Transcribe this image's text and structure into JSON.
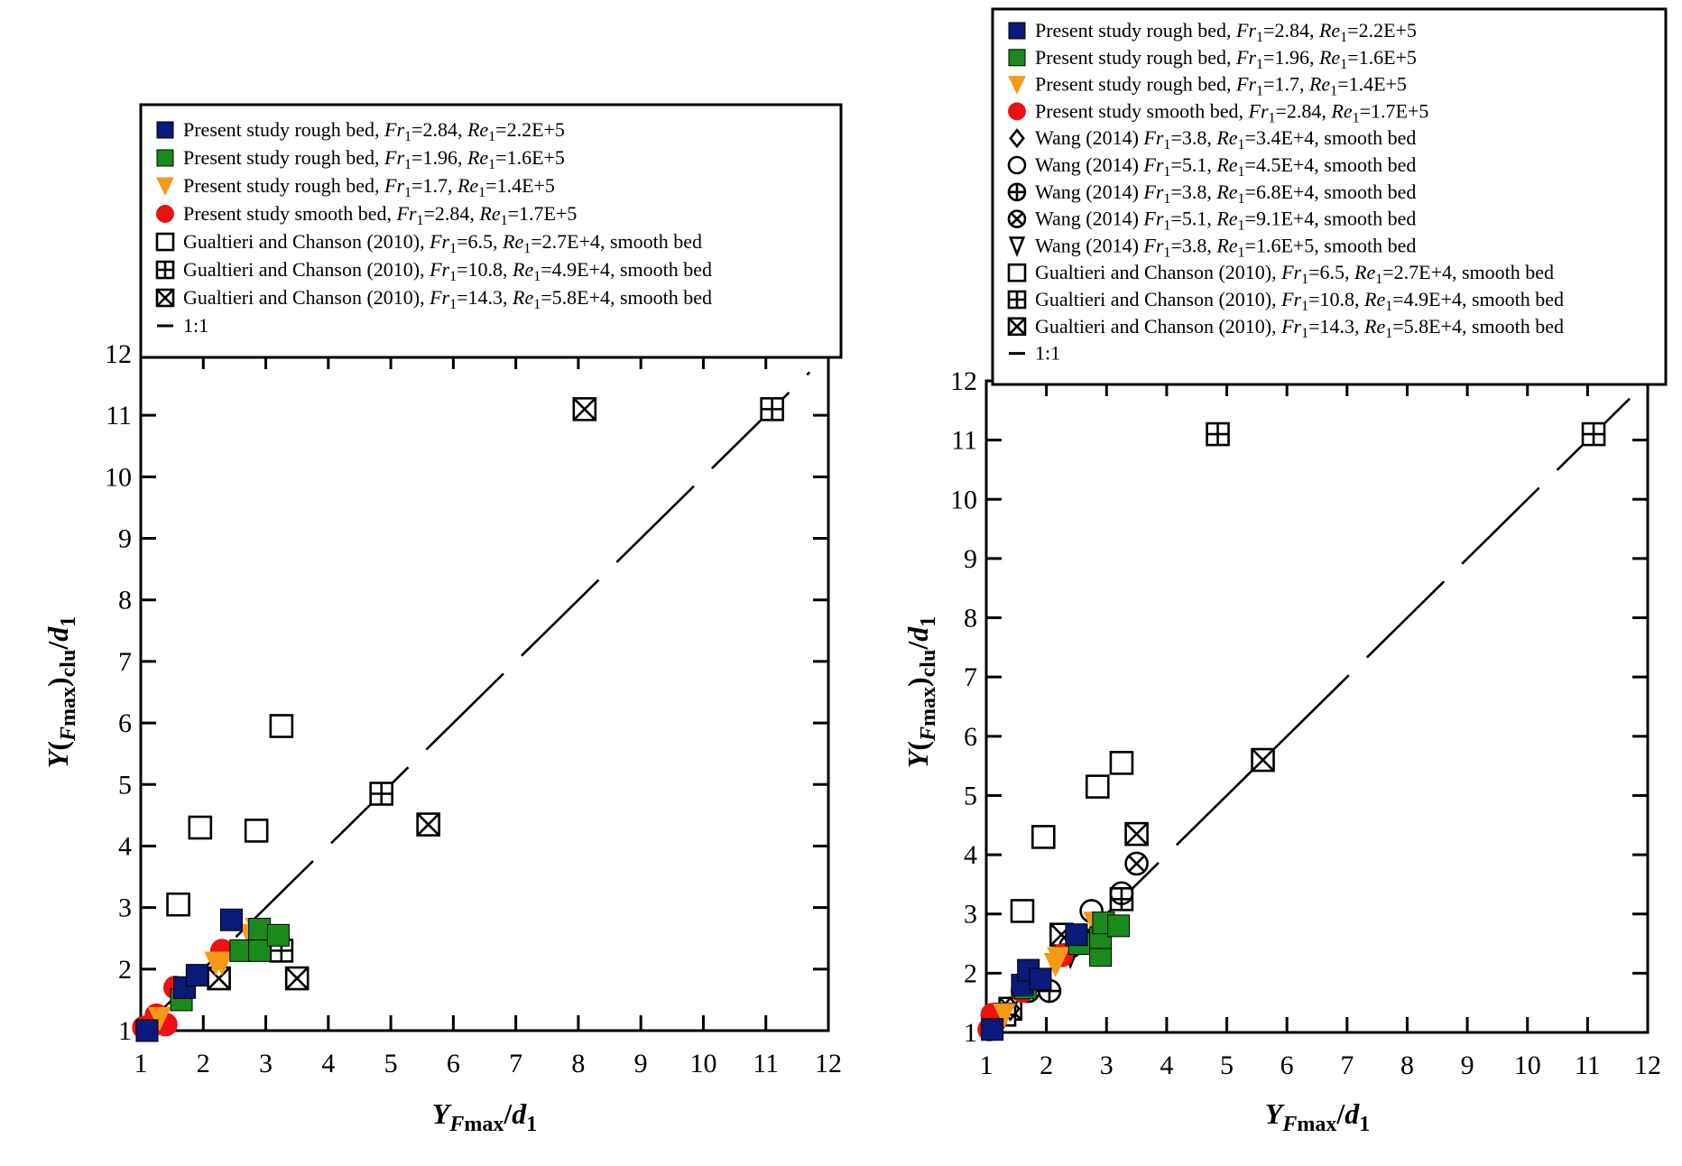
{
  "colors": {
    "rough_284": "#0a1a7a",
    "rough_196": "#1a8a1a",
    "rough_17": "#f59a16",
    "smooth_284": "#ee1111",
    "black": "#000000"
  },
  "chart_data": [
    {
      "type": "scatter",
      "title": "",
      "xlabel": "YFmax/d1",
      "ylabel": "Y(Fmax)clu/d1",
      "xlabel_parts": {
        "main": "Y",
        "sub_italic": "F",
        "sub": "max",
        "slash": "/",
        "d": "d",
        "d_sub": "1"
      },
      "ylabel_parts": {
        "main": "Y(",
        "sub_italic": "F",
        "sub": "max",
        "close": ")",
        "sub2": "clu",
        "slash": "/",
        "d": "d",
        "d_sub": "1"
      },
      "xlim": [
        1,
        12
      ],
      "ylim": [
        1,
        12
      ],
      "xticks": [
        "1",
        "2",
        "3",
        "4",
        "5",
        "6",
        "7",
        "8",
        "9",
        "10",
        "11",
        "12"
      ],
      "yticks": [
        "1",
        "2",
        "3",
        "4",
        "5",
        "6",
        "7",
        "8",
        "9",
        "10",
        "11",
        "12"
      ],
      "grid": false,
      "legend_position": "top",
      "series": [
        {
          "name": "Present study rough bed, Fr1=2.84, Re1=2.2E+5",
          "label": [
            "Present study rough bed, ",
            "Fr",
            "1",
            "=2.84, ",
            "Re",
            "1",
            "=2.2E+5"
          ],
          "marker": "square-filled",
          "color": "#0a1a7a",
          "points": [
            [
              1.1,
              1.0
            ],
            [
              1.7,
              1.7
            ],
            [
              1.9,
              1.9
            ],
            [
              2.45,
              2.8
            ]
          ]
        },
        {
          "name": "Present study rough bed, Fr1=1.96, Re1=1.6E+5",
          "label": [
            "Present study rough bed, ",
            "Fr",
            "1",
            "=1.96, ",
            "Re",
            "1",
            "=1.6E+5"
          ],
          "marker": "square-filled",
          "color": "#1a8a1a",
          "points": [
            [
              1.65,
              1.5
            ],
            [
              2.6,
              2.3
            ],
            [
              2.9,
              2.3
            ],
            [
              2.9,
              2.65
            ],
            [
              3.2,
              2.55
            ]
          ]
        },
        {
          "name": "Present study rough bed, Fr1=1.7, Re1=1.4E+5",
          "label": [
            "Present study rough bed, ",
            "Fr",
            "1",
            "=1.7, ",
            "Re",
            "1",
            "=1.4E+5"
          ],
          "marker": "triangle-down-filled",
          "color": "#f59a16",
          "points": [
            [
              1.3,
              1.2
            ],
            [
              2.2,
              2.1
            ],
            [
              2.3,
              2.1
            ],
            [
              2.75,
              2.55
            ],
            [
              2.85,
              2.65
            ]
          ]
        },
        {
          "name": "Present study smooth bed, Fr1=2.84, Re1=1.7E+5",
          "label": [
            "Present study smooth bed, ",
            "Fr",
            "1",
            "=2.84, ",
            "Re",
            "1",
            "=1.7E+5"
          ],
          "marker": "circle-filled",
          "color": "#ee1111",
          "points": [
            [
              1.05,
              1.05
            ],
            [
              1.15,
              1.05
            ],
            [
              1.25,
              1.25
            ],
            [
              1.4,
              1.1
            ],
            [
              1.55,
              1.7
            ],
            [
              2.3,
              2.3
            ]
          ]
        },
        {
          "name": "Gualtieri and Chanson (2010), Fr1=6.5, Re1=2.7E+4, smooth bed",
          "label": [
            "Gualtieri and Chanson (2010), ",
            "Fr",
            "1",
            "=6.5, ",
            "Re",
            "1",
            "=2.7E+4, smooth bed"
          ],
          "marker": "square-open",
          "color": "#000000",
          "points": [
            [
              1.6,
              3.05
            ],
            [
              1.95,
              4.3
            ],
            [
              2.85,
              4.25
            ],
            [
              3.25,
              5.95
            ]
          ]
        },
        {
          "name": "Gualtieri and Chanson (2010), Fr1=10.8, Re1=4.9E+4, smooth bed",
          "label": [
            "Gualtieri and Chanson (2010), ",
            "Fr",
            "1",
            "=10.8, ",
            "Re",
            "1",
            "=4.9E+4, smooth bed"
          ],
          "marker": "square-plus",
          "color": "#000000",
          "points": [
            [
              3.25,
              2.3
            ],
            [
              4.85,
              4.85
            ],
            [
              11.1,
              11.1
            ]
          ]
        },
        {
          "name": "Gualtieri and Chanson (2010), Fr1=14.3, Re1=5.8E+4, smooth bed",
          "label": [
            "Gualtieri and Chanson (2010), ",
            "Fr",
            "1",
            "=14.3, ",
            "Re",
            "1",
            "=5.8E+4, smooth bed"
          ],
          "marker": "square-x",
          "color": "#000000",
          "points": [
            [
              2.25,
              1.85
            ],
            [
              3.5,
              1.85
            ],
            [
              5.6,
              4.35
            ],
            [
              8.1,
              11.1
            ]
          ]
        },
        {
          "name": "1:1",
          "label": [
            "1:1"
          ],
          "marker": "line-dashed",
          "color": "#000000",
          "points": [
            [
              1,
              1
            ],
            [
              11.7,
              11.7
            ]
          ]
        }
      ]
    },
    {
      "type": "scatter",
      "title": "",
      "xlabel": "YFmax/d1",
      "ylabel": "Y(Fmax)clu/d1",
      "xlabel_parts": {
        "main": "Y",
        "sub_italic": "F",
        "sub": "max",
        "slash": "/",
        "d": "d",
        "d_sub": "1"
      },
      "ylabel_parts": {
        "main": "Y(",
        "sub_italic": "F",
        "sub": "max",
        "close": ")",
        "sub2": "clu",
        "slash": "/",
        "d": "d",
        "d_sub": "1"
      },
      "xlim": [
        1,
        12
      ],
      "ylim": [
        1,
        12
      ],
      "xticks": [
        "1",
        "2",
        "3",
        "4",
        "5",
        "6",
        "7",
        "8",
        "9",
        "10",
        "11",
        "12"
      ],
      "yticks": [
        "1",
        "2",
        "3",
        "4",
        "5",
        "6",
        "7",
        "8",
        "9",
        "10",
        "11",
        "12"
      ],
      "grid": false,
      "legend_position": "top",
      "series": [
        {
          "name": "Present study rough bed, Fr1=2.84, Re1=2.2E+5",
          "label": [
            "Present study rough bed, ",
            "Fr",
            "1",
            "=2.84, ",
            "Re",
            "1",
            "=2.2E+5"
          ],
          "marker": "square-filled",
          "color": "#0a1a7a",
          "points": [
            [
              1.1,
              1.05
            ],
            [
              1.6,
              1.8
            ],
            [
              1.7,
              2.05
            ],
            [
              1.9,
              1.9
            ],
            [
              2.5,
              2.65
            ]
          ]
        },
        {
          "name": "Present study rough bed, Fr1=1.96, Re1=1.6E+5",
          "label": [
            "Present study rough bed, ",
            "Fr",
            "1",
            "=1.96, ",
            "Re",
            "1",
            "=1.6E+5"
          ],
          "marker": "square-filled",
          "color": "#1a8a1a",
          "points": [
            [
              1.65,
              1.75
            ],
            [
              2.55,
              2.5
            ],
            [
              2.9,
              2.3
            ],
            [
              2.9,
              2.6
            ],
            [
              2.95,
              2.85
            ],
            [
              3.2,
              2.8
            ]
          ]
        },
        {
          "name": "Present study rough bed, Fr1=1.7, Re1=1.4E+5",
          "label": [
            "Present study rough bed, ",
            "Fr",
            "1",
            "=1.7, ",
            "Re",
            "1",
            "=1.4E+5"
          ],
          "marker": "triangle-down-filled",
          "color": "#f59a16",
          "points": [
            [
              1.3,
              1.3
            ],
            [
              2.15,
              2.15
            ],
            [
              2.2,
              2.25
            ],
            [
              2.8,
              2.85
            ]
          ]
        },
        {
          "name": "Present study smooth bed, Fr1=2.84, Re1=1.7E+5",
          "label": [
            "Present study smooth bed, ",
            "Fr",
            "1",
            "=2.84, ",
            "Re",
            "1",
            "=1.7E+5"
          ],
          "marker": "circle-filled",
          "color": "#ee1111",
          "points": [
            [
              1.05,
              1.05
            ],
            [
              1.1,
              1.3
            ],
            [
              1.15,
              1.2
            ],
            [
              1.6,
              1.7
            ],
            [
              1.65,
              1.75
            ],
            [
              2.25,
              2.3
            ]
          ]
        },
        {
          "name": "Wang (2014) Fr1=3.8, Re1=3.4E+4, smooth bed",
          "label": [
            "Wang (2014) ",
            "Fr",
            "1",
            "=3.8, ",
            "Re",
            "1",
            "=3.4E+4, smooth bed"
          ],
          "marker": "diamond-open",
          "color": "#000000",
          "points": [
            [
              1.4,
              1.4
            ],
            [
              2.5,
              2.6
            ]
          ]
        },
        {
          "name": "Wang (2014) Fr1=5.1, Re1=4.5E+4, smooth bed",
          "label": [
            "Wang (2014) ",
            "Fr",
            "1",
            "=5.1, ",
            "Re",
            "1",
            "=4.5E+4, smooth bed"
          ],
          "marker": "circle-open",
          "color": "#000000",
          "points": [
            [
              2.4,
              2.45
            ],
            [
              2.75,
              3.05
            ],
            [
              3.25,
              3.35
            ]
          ]
        },
        {
          "name": "Wang (2014) Fr1=3.8, Re1=6.8E+4, smooth bed",
          "label": [
            "Wang (2014) ",
            "Fr",
            "1",
            "=3.8, ",
            "Re",
            "1",
            "=6.8E+4, smooth bed"
          ],
          "marker": "circle-plus",
          "color": "#000000",
          "points": [
            [
              1.7,
              1.7
            ],
            [
              2.05,
              1.7
            ]
          ]
        },
        {
          "name": "Wang (2014) Fr1=5.1, Re1=9.1E+4, smooth bed",
          "label": [
            "Wang (2014) ",
            "Fr",
            "1",
            "=5.1, ",
            "Re",
            "1",
            "=9.1E+4, smooth bed"
          ],
          "marker": "circle-x",
          "color": "#000000",
          "points": [
            [
              2.5,
              2.6
            ],
            [
              3.5,
              3.85
            ]
          ]
        },
        {
          "name": "Wang (2014) Fr1=3.8, Re1=1.6E+5, smooth bed",
          "label": [
            "Wang (2014) ",
            "Fr",
            "1",
            "=3.8, ",
            "Re",
            "1",
            "=1.6E+5, smooth bed"
          ],
          "marker": "triangle-down-open",
          "color": "#000000",
          "points": [
            [
              2.4,
              2.3
            ],
            [
              2.6,
              2.55
            ]
          ]
        },
        {
          "name": "Gualtieri and Chanson (2010), Fr1=6.5, Re1=2.7E+4, smooth bed",
          "label": [
            "Gualtieri and Chanson (2010), ",
            "Fr",
            "1",
            "=6.5, ",
            "Re",
            "1",
            "=2.7E+4, smooth bed"
          ],
          "marker": "square-open",
          "color": "#000000",
          "points": [
            [
              1.6,
              3.05
            ],
            [
              1.95,
              4.3
            ],
            [
              2.85,
              5.15
            ],
            [
              3.25,
              5.55
            ]
          ]
        },
        {
          "name": "Gualtieri and Chanson (2010), Fr1=10.8, Re1=4.9E+4, smooth bed",
          "label": [
            "Gualtieri and Chanson (2010), ",
            "Fr",
            "1",
            "=10.8, ",
            "Re",
            "1",
            "=4.9E+4, smooth bed"
          ],
          "marker": "square-plus",
          "color": "#000000",
          "points": [
            [
              1.3,
              1.3
            ],
            [
              3.25,
              3.25
            ],
            [
              4.85,
              11.1
            ],
            [
              11.1,
              11.1
            ]
          ]
        },
        {
          "name": "Gualtieri and Chanson (2010), Fr1=14.3, Re1=5.8E+4, smooth bed",
          "label": [
            "Gualtieri and Chanson (2010), ",
            "Fr",
            "1",
            "=14.3, ",
            "Re",
            "1",
            "=5.8E+4, smooth bed"
          ],
          "marker": "square-x",
          "color": "#000000",
          "points": [
            [
              1.4,
              1.4
            ],
            [
              2.25,
              2.65
            ],
            [
              3.5,
              4.35
            ],
            [
              5.6,
              5.6
            ]
          ]
        },
        {
          "name": "1:1",
          "label": [
            "1:1"
          ],
          "marker": "line-dashed",
          "color": "#000000",
          "points": [
            [
              1,
              1
            ],
            [
              11.7,
              11.7
            ]
          ]
        }
      ]
    }
  ]
}
